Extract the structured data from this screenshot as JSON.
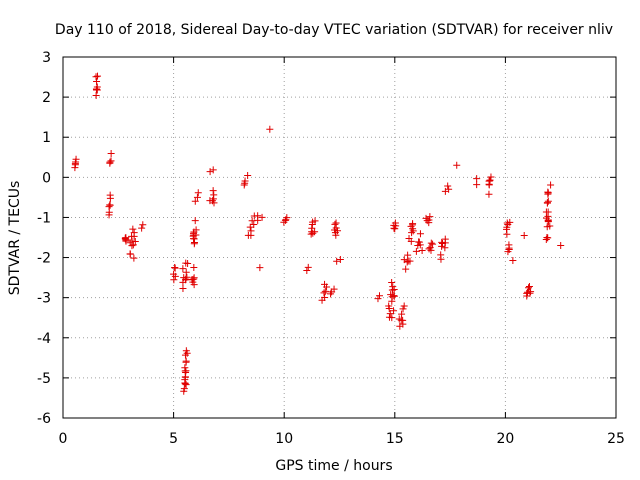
{
  "chart_data": {
    "type": "scatter",
    "title": "Day 110 of 2018, Sidereal Day-to-day VTEC variation (SDTVAR) for receiver nliv",
    "xlabel": "GPS time / hours",
    "ylabel": "SDTVAR / TECUs",
    "xlim": [
      0,
      25
    ],
    "ylim": [
      -6,
      3
    ],
    "xticks": [
      0,
      5,
      10,
      15,
      20,
      25
    ],
    "yticks": [
      -6,
      -5,
      -4,
      -3,
      -2,
      -1,
      0,
      1,
      2,
      3
    ],
    "grid": true,
    "marker": "+",
    "color": "#e00000",
    "clusters": [
      {
        "x": [
          0.5,
          0.62
        ],
        "y": [
          0.2,
          0.6
        ]
      },
      {
        "x": [
          1.45,
          1.62
        ],
        "y": [
          1.95,
          2.7
        ]
      },
      {
        "x": [
          2.0,
          2.2
        ],
        "y": [
          -1.0,
          -0.4
        ]
      },
      {
        "x": [
          2.05,
          2.25
        ],
        "y": [
          0.25,
          0.6
        ]
      },
      {
        "x": [
          2.7,
          2.95
        ],
        "y": [
          -1.8,
          -1.3
        ]
      },
      {
        "x": [
          3.0,
          3.3
        ],
        "y": [
          -2.2,
          -1.2
        ]
      },
      {
        "x": [
          3.5,
          3.7
        ],
        "y": [
          -1.3,
          -1.15
        ]
      },
      {
        "x": [
          4.9,
          5.15
        ],
        "y": [
          -2.6,
          -2.2
        ]
      },
      {
        "x": [
          5.35,
          5.7
        ],
        "y": [
          -2.85,
          -2.0
        ]
      },
      {
        "x": [
          5.45,
          5.65
        ],
        "y": [
          -5.55,
          -4.1
        ]
      },
      {
        "x": [
          5.75,
          6.0
        ],
        "y": [
          -2.8,
          -2.2
        ]
      },
      {
        "x": [
          5.85,
          6.05
        ],
        "y": [
          -1.9,
          -1.0
        ]
      },
      {
        "x": [
          5.95,
          6.2
        ],
        "y": [
          -0.6,
          -0.35
        ]
      },
      {
        "x": [
          6.5,
          7.0
        ],
        "y": [
          -0.8,
          -0.3
        ]
      },
      {
        "x": [
          6.6,
          6.8
        ],
        "y": [
          0.1,
          0.2
        ]
      },
      {
        "x": [
          8.15,
          8.35
        ],
        "y": [
          -0.2,
          0.15
        ]
      },
      {
        "x": [
          8.3,
          8.7
        ],
        "y": [
          -1.5,
          -0.9
        ]
      },
      {
        "x": [
          8.7,
          9.0
        ],
        "y": [
          -1.1,
          -0.85
        ]
      },
      {
        "x": [
          8.9,
          8.9
        ],
        "y": [
          -2.25,
          -2.25
        ]
      },
      {
        "x": [
          9.35,
          9.35
        ],
        "y": [
          1.2,
          1.2
        ]
      },
      {
        "x": [
          9.95,
          10.15
        ],
        "y": [
          -1.3,
          -0.95
        ]
      },
      {
        "x": [
          10.95,
          11.1
        ],
        "y": [
          -2.35,
          -2.2
        ]
      },
      {
        "x": [
          11.2,
          11.4
        ],
        "y": [
          -1.6,
          -0.9
        ]
      },
      {
        "x": [
          11.7,
          12.0
        ],
        "y": [
          -3.1,
          -2.6
        ]
      },
      {
        "x": [
          12.0,
          12.3
        ],
        "y": [
          -2.95,
          -2.75
        ]
      },
      {
        "x": [
          12.2,
          12.45
        ],
        "y": [
          -1.6,
          -1.0
        ]
      },
      {
        "x": [
          12.35,
          12.55
        ],
        "y": [
          -2.2,
          -2.0
        ]
      },
      {
        "x": [
          14.2,
          14.4
        ],
        "y": [
          -3.1,
          -2.9
        ]
      },
      {
        "x": [
          14.7,
          15.05
        ],
        "y": [
          -3.7,
          -2.4
        ]
      },
      {
        "x": [
          14.85,
          15.1
        ],
        "y": [
          -1.5,
          -1.05
        ]
      },
      {
        "x": [
          15.15,
          15.45
        ],
        "y": [
          -3.85,
          -3.2
        ]
      },
      {
        "x": [
          15.35,
          15.7
        ],
        "y": [
          -2.3,
          -1.8
        ]
      },
      {
        "x": [
          15.6,
          16.0
        ],
        "y": [
          -1.6,
          -0.9
        ]
      },
      {
        "x": [
          15.9,
          16.35
        ],
        "y": [
          -1.95,
          -1.4
        ]
      },
      {
        "x": [
          16.4,
          16.6
        ],
        "y": [
          -1.25,
          -0.85
        ]
      },
      {
        "x": [
          16.5,
          16.8
        ],
        "y": [
          -1.95,
          -1.55
        ]
      },
      {
        "x": [
          17.05,
          17.3
        ],
        "y": [
          -2.1,
          -1.4
        ]
      },
      {
        "x": [
          17.25,
          17.5
        ],
        "y": [
          -0.4,
          -0.2
        ]
      },
      {
        "x": [
          17.8,
          17.8
        ],
        "y": [
          0.3,
          0.3
        ]
      },
      {
        "x": [
          18.7,
          18.7
        ],
        "y": [
          0.0,
          -0.2
        ]
      },
      {
        "x": [
          19.2,
          19.4
        ],
        "y": [
          -0.55,
          0.05
        ]
      },
      {
        "x": [
          20.0,
          20.2
        ],
        "y": [
          -1.5,
          -1.0
        ]
      },
      {
        "x": [
          20.1,
          20.2
        ],
        "y": [
          -1.9,
          -1.6
        ]
      },
      {
        "x": [
          20.3,
          20.45
        ],
        "y": [
          -2.15,
          -2.05
        ]
      },
      {
        "x": [
          20.9,
          21.2
        ],
        "y": [
          -3.15,
          -2.6
        ]
      },
      {
        "x": [
          20.85,
          20.85
        ],
        "y": [
          -1.45,
          -1.45
        ]
      },
      {
        "x": [
          21.8,
          22.05
        ],
        "y": [
          -1.75,
          -0.15
        ]
      },
      {
        "x": [
          22.5,
          22.5
        ],
        "y": [
          -1.7,
          -1.7
        ]
      }
    ]
  }
}
